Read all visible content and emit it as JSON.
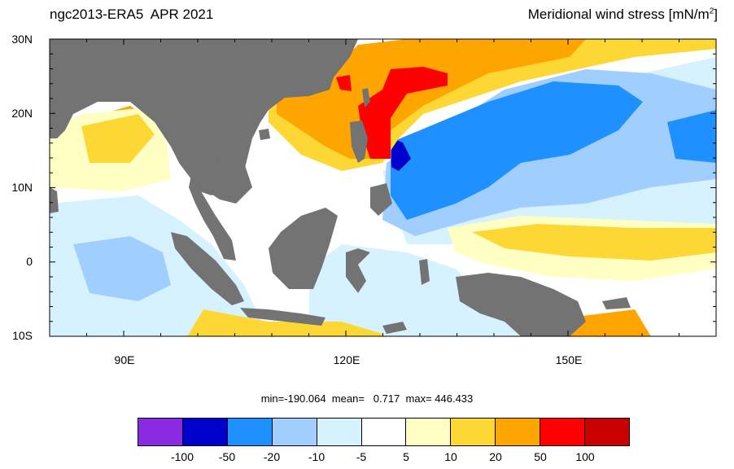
{
  "title": {
    "left": "ngc2013-ERA5  APR 2021",
    "right_main": "Meridional wind stress [mN/m",
    "right_sup": "2",
    "right_end": "]"
  },
  "axes": {
    "lat_labels": [
      "30N",
      "20N",
      "10N",
      "0",
      "10S"
    ],
    "lon_labels": [
      "90E",
      "120E",
      "150E"
    ],
    "lon_range": [
      80,
      170
    ],
    "lat_range": [
      -10,
      30
    ]
  },
  "stats": {
    "text": "min=-190.064  mean=   0.717  max= 446.433",
    "min": -190.064,
    "mean": 0.717,
    "max": 446.433
  },
  "colorbar": {
    "colors": [
      "#8a2be2",
      "#0000cd",
      "#1e90ff",
      "#a0cfff",
      "#d7f2ff",
      "#ffffff",
      "#ffffc4",
      "#fdd835",
      "#ffa500",
      "#ff0000",
      "#c80000"
    ],
    "labels": [
      "-100",
      "-50",
      "-20",
      "-10",
      "-5",
      "5",
      "10",
      "20",
      "50",
      "100"
    ]
  },
  "colors": {
    "land": "#737373",
    "ocean_default": "#ffffff"
  }
}
